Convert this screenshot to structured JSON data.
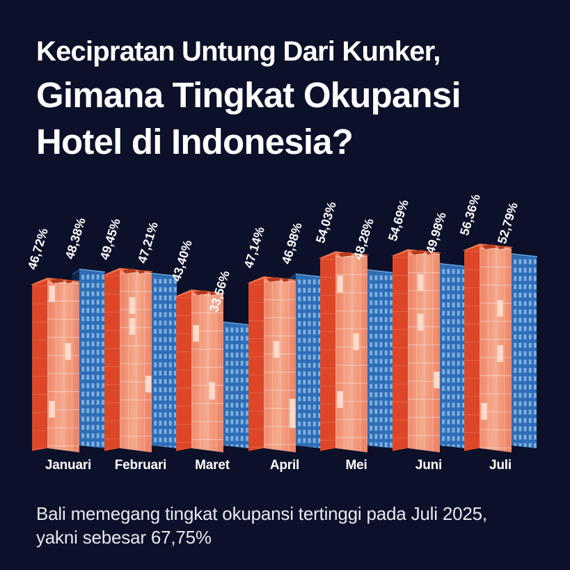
{
  "title": {
    "line1": "Kecipratan Untung Dari Kunker,",
    "line2": "Gimana Tingkat Okupansi",
    "line3": "Hotel di Indonesia?"
  },
  "footer": {
    "line1": "Bali memegang tingkat okupansi tertinggi pada Juli 2025,",
    "line2": "yakni sebesar 67,75%"
  },
  "colors": {
    "background": "#0c1029",
    "title_text": "#ffffff",
    "footer_text": "#e9e8f0",
    "red_tower_side": "#dd4727",
    "red_tower_front": "#f0906f",
    "red_tower_roof": "#ef764f",
    "red_tower_lit_window": "#fcd9c8",
    "blue_tower_side": "#10294b",
    "blue_tower_front": "#2d6db8",
    "blue_tower_window": "#7fb0de",
    "label_text": "#ffffff"
  },
  "chart_data": {
    "type": "bar",
    "style": "isometric-skyscraper-illustration",
    "title": "Tingkat okupansi hotel di Indonesia per bulan",
    "categories": [
      "Januari",
      "Februari",
      "Maret",
      "April",
      "Mei",
      "Juni",
      "Juli"
    ],
    "series": [
      {
        "name": "red",
        "color": "#e1492a",
        "values": [
          46.72,
          49.45,
          43.4,
          47.14,
          54.03,
          54.69,
          56.36
        ],
        "labels": [
          "46,72%",
          "49,45%",
          "43,40%",
          "47,14%",
          "54,03%",
          "54,69%",
          "56,36%"
        ]
      },
      {
        "name": "blue",
        "color": "#2d6db8",
        "values": [
          48.38,
          47.21,
          33.56,
          46.98,
          48.28,
          49.98,
          52.79
        ],
        "labels": [
          "48,38%",
          "47,21%",
          "33,56%",
          "46,98%",
          "48,28%",
          "49,98%",
          "52,79%"
        ]
      }
    ],
    "value_suffix": "%",
    "decimal_separator": ",",
    "ylim": [
      0,
      60
    ],
    "grid": false,
    "legend": "none"
  }
}
